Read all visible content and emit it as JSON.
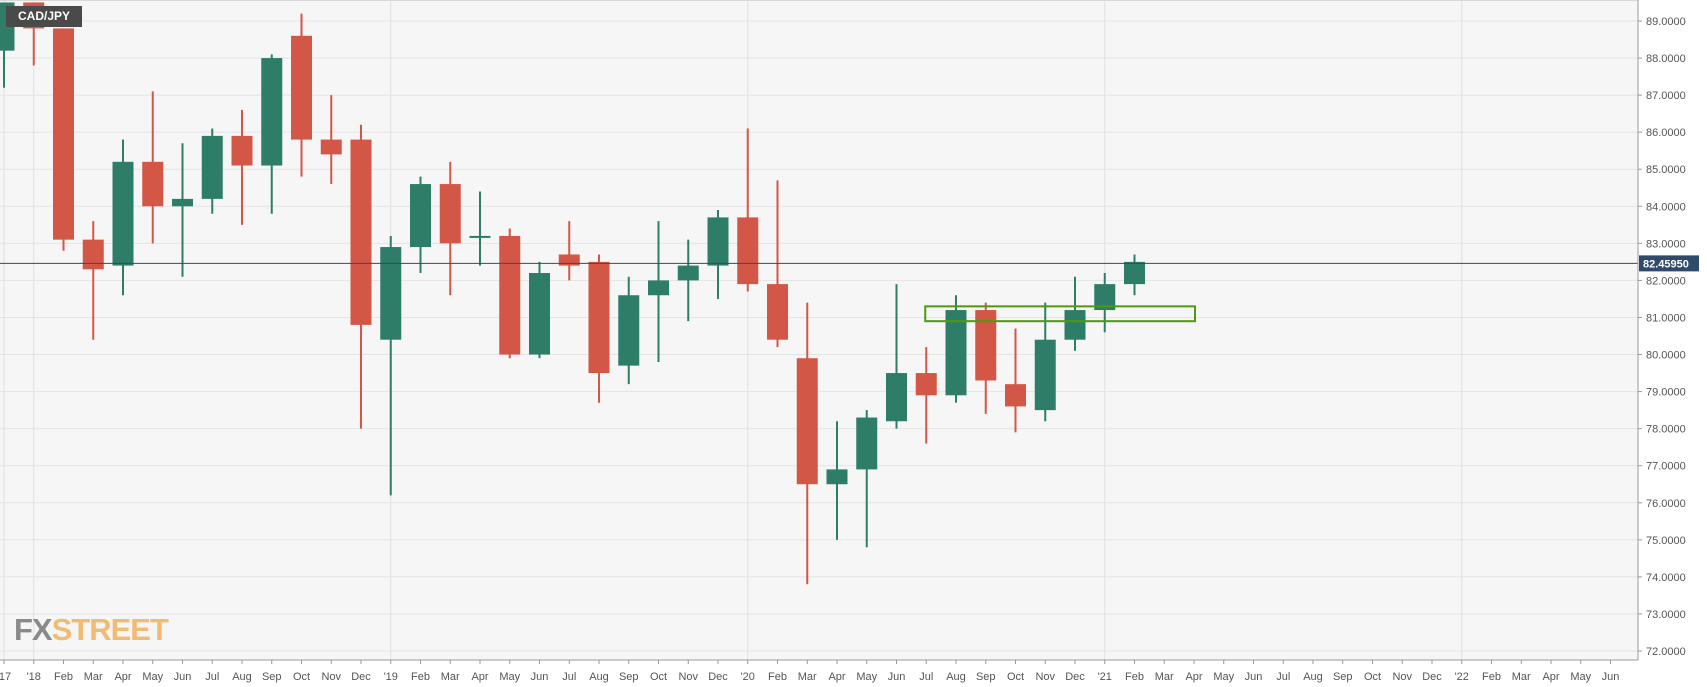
{
  "symbol_badge": "CAD/JPY",
  "logo": {
    "fx": "FX",
    "street": "STREET"
  },
  "current_price_label": "82.45950",
  "colors": {
    "up": "#2e7d68",
    "down": "#d35746",
    "price_line": "#2f4a6b",
    "zone": "#4d9a0f",
    "grid": "#e4e4e4",
    "background": "#f6f6f6"
  },
  "chart_data": {
    "type": "candlestick",
    "period": "monthly",
    "ylim": [
      71.7,
      89.35
    ],
    "y_ticks": [
      "72.0000",
      "73.0000",
      "74.0000",
      "75.0000",
      "76.0000",
      "77.0000",
      "78.0000",
      "79.0000",
      "80.0000",
      "81.0000",
      "82.0000",
      "83.0000",
      "84.0000",
      "85.0000",
      "86.0000",
      "87.0000",
      "88.0000",
      "89.0000"
    ],
    "current_price": 82.4595,
    "x_labels": [
      "'17",
      "'18",
      "Feb",
      "Mar",
      "Apr",
      "May",
      "Jun",
      "Jul",
      "Aug",
      "Sep",
      "Oct",
      "Nov",
      "Dec",
      "'19",
      "Feb",
      "Mar",
      "Apr",
      "May",
      "Jun",
      "Jul",
      "Aug",
      "Sep",
      "Oct",
      "Nov",
      "Dec",
      "'20",
      "Feb",
      "Mar",
      "Apr",
      "May",
      "Jun",
      "Jul",
      "Aug",
      "Sep",
      "Oct",
      "Nov",
      "Dec",
      "'21",
      "Feb",
      "Mar",
      "Apr",
      "May",
      "Jun",
      "Jul",
      "Aug",
      "Sep",
      "Oct",
      "Nov",
      "Dec",
      "'22",
      "Feb",
      "Mar",
      "Apr",
      "May",
      "Jun"
    ],
    "candles": [
      {
        "month": "Dec 2017",
        "open": 88.2,
        "high": 89.5,
        "low": 87.2,
        "close": 89.5
      },
      {
        "month": "Jan 2018",
        "open": 89.5,
        "high": 89.5,
        "low": 87.8,
        "close": 88.8
      },
      {
        "month": "Feb 2018",
        "open": 88.8,
        "high": 88.8,
        "low": 82.8,
        "close": 83.1
      },
      {
        "month": "Mar 2018",
        "open": 83.1,
        "high": 83.6,
        "low": 80.4,
        "close": 82.3
      },
      {
        "month": "Apr 2018",
        "open": 82.4,
        "high": 85.8,
        "low": 81.6,
        "close": 85.2
      },
      {
        "month": "May 2018",
        "open": 85.2,
        "high": 87.1,
        "low": 83.0,
        "close": 84.0
      },
      {
        "month": "Jun 2018",
        "open": 84.0,
        "high": 85.7,
        "low": 82.1,
        "close": 84.2
      },
      {
        "month": "Jul 2018",
        "open": 84.2,
        "high": 86.1,
        "low": 83.8,
        "close": 85.9
      },
      {
        "month": "Aug 2018",
        "open": 85.9,
        "high": 86.6,
        "low": 83.5,
        "close": 85.1
      },
      {
        "month": "Sep 2018",
        "open": 85.1,
        "high": 88.1,
        "low": 83.8,
        "close": 88.0
      },
      {
        "month": "Oct 2018",
        "open": 88.6,
        "high": 89.2,
        "low": 84.8,
        "close": 85.8
      },
      {
        "month": "Nov 2018",
        "open": 85.8,
        "high": 87.0,
        "low": 84.6,
        "close": 85.4
      },
      {
        "month": "Dec 2018",
        "open": 85.8,
        "high": 86.2,
        "low": 78.0,
        "close": 80.8
      },
      {
        "month": "Jan 2019",
        "open": 80.4,
        "high": 83.2,
        "low": 76.2,
        "close": 82.9
      },
      {
        "month": "Feb 2019",
        "open": 82.9,
        "high": 84.8,
        "low": 82.2,
        "close": 84.6
      },
      {
        "month": "Mar 2019",
        "open": 84.6,
        "high": 85.2,
        "low": 81.6,
        "close": 83.0
      },
      {
        "month": "Apr 2019",
        "open": 83.2,
        "high": 84.4,
        "low": 82.4,
        "close": 83.2
      },
      {
        "month": "May 2019",
        "open": 83.2,
        "high": 83.4,
        "low": 79.9,
        "close": 80.0
      },
      {
        "month": "Jun 2019",
        "open": 80.0,
        "high": 82.5,
        "low": 79.9,
        "close": 82.2
      },
      {
        "month": "Jul 2019",
        "open": 82.7,
        "high": 83.6,
        "low": 82.0,
        "close": 82.4
      },
      {
        "month": "Aug 2019",
        "open": 82.5,
        "high": 82.7,
        "low": 78.7,
        "close": 79.5
      },
      {
        "month": "Sep 2019",
        "open": 79.7,
        "high": 82.1,
        "low": 79.2,
        "close": 81.6
      },
      {
        "month": "Oct 2019",
        "open": 81.6,
        "high": 83.6,
        "low": 79.8,
        "close": 82.0
      },
      {
        "month": "Nov 2019",
        "open": 82.0,
        "high": 83.1,
        "low": 80.9,
        "close": 82.4
      },
      {
        "month": "Dec 2019",
        "open": 82.4,
        "high": 83.9,
        "low": 81.5,
        "close": 83.7
      },
      {
        "month": "Jan 2020",
        "open": 83.7,
        "high": 86.1,
        "low": 81.7,
        "close": 81.9
      },
      {
        "month": "Feb 2020",
        "open": 81.9,
        "high": 84.7,
        "low": 80.2,
        "close": 80.4
      },
      {
        "month": "Mar 2020",
        "open": 79.9,
        "high": 81.4,
        "low": 73.8,
        "close": 76.5
      },
      {
        "month": "Apr 2020",
        "open": 76.5,
        "high": 78.2,
        "low": 75.0,
        "close": 76.9
      },
      {
        "month": "May 2020",
        "open": 76.9,
        "high": 78.5,
        "low": 74.8,
        "close": 78.3
      },
      {
        "month": "Jun 2020",
        "open": 78.2,
        "high": 81.9,
        "low": 78.0,
        "close": 79.5
      },
      {
        "month": "Jul 2020",
        "open": 79.5,
        "high": 80.2,
        "low": 77.6,
        "close": 78.9
      },
      {
        "month": "Aug 2020",
        "open": 78.9,
        "high": 81.6,
        "low": 78.7,
        "close": 81.2
      },
      {
        "month": "Sep 2020",
        "open": 81.2,
        "high": 81.4,
        "low": 78.4,
        "close": 79.3
      },
      {
        "month": "Oct 2020",
        "open": 79.2,
        "high": 80.7,
        "low": 77.9,
        "close": 78.6
      },
      {
        "month": "Nov 2020",
        "open": 78.5,
        "high": 81.4,
        "low": 78.2,
        "close": 80.4
      },
      {
        "month": "Dec 2020",
        "open": 80.4,
        "high": 82.1,
        "low": 80.1,
        "close": 81.2
      },
      {
        "month": "Jan 2021",
        "open": 81.2,
        "high": 82.2,
        "low": 80.6,
        "close": 81.9
      },
      {
        "month": "Feb 2021",
        "open": 81.9,
        "high": 82.7,
        "low": 81.6,
        "close": 82.5
      }
    ],
    "zone": {
      "from_month": "Jul 2020",
      "to_month": "Apr 2021",
      "y_low": 80.9,
      "y_high": 81.3
    }
  }
}
